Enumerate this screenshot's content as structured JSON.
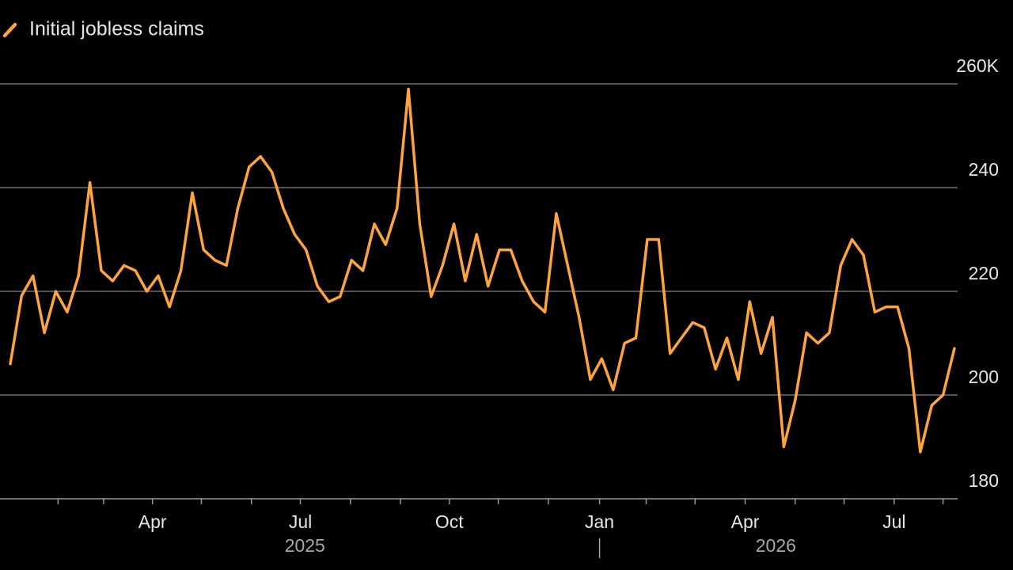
{
  "chart_data": {
    "type": "line",
    "series": [
      {
        "name": "Initial jobless claims",
        "color": "#fda43d",
        "values": [
          206,
          219.2,
          223,
          212,
          220,
          216,
          223,
          241,
          224,
          222,
          225,
          224,
          220,
          223,
          217,
          224,
          239,
          228,
          226,
          225,
          236,
          244,
          246,
          243,
          236,
          231,
          228,
          221,
          218,
          219,
          226,
          224,
          233,
          229,
          236,
          259,
          233,
          219,
          225,
          233,
          222,
          231,
          221,
          228,
          228,
          222,
          218,
          216,
          235,
          225,
          215,
          203,
          207,
          201,
          210,
          211,
          230,
          230,
          208,
          211,
          214,
          213,
          205,
          211,
          203,
          218,
          208,
          215,
          190,
          199,
          212,
          210,
          212,
          225,
          230,
          227,
          216,
          217,
          217,
          209,
          189,
          198,
          200,
          209
        ]
      }
    ],
    "xlim": [
      0,
      83
    ],
    "xticks": [
      {
        "value": 12.5,
        "label": "Apr"
      },
      {
        "value": 25.5,
        "label": "Jul"
      },
      {
        "value": 38.6,
        "label": "Oct"
      },
      {
        "value": 51.8,
        "label": "Jan"
      },
      {
        "value": 64.6,
        "label": "Apr"
      },
      {
        "value": 77.7,
        "label": "Jul"
      }
    ],
    "xminorticks": [
      4.2,
      8.2,
      12.5,
      16.8,
      21.2,
      25.5,
      29.9,
      34.3,
      38.6,
      42.9,
      47.3,
      51.8,
      55.9,
      60.2,
      64.6,
      69.0,
      73.3,
      77.7,
      82.0
    ],
    "xgroups": [
      {
        "value": 25.9,
        "label": "2025"
      },
      {
        "value": 67.3,
        "label": "2026"
      }
    ],
    "ylim": [
      180,
      260
    ],
    "yticks": [
      180,
      200,
      220,
      {
        "value": 240,
        "label": "240"
      },
      {
        "value": 260,
        "label": "260K"
      }
    ],
    "grid": true
  }
}
